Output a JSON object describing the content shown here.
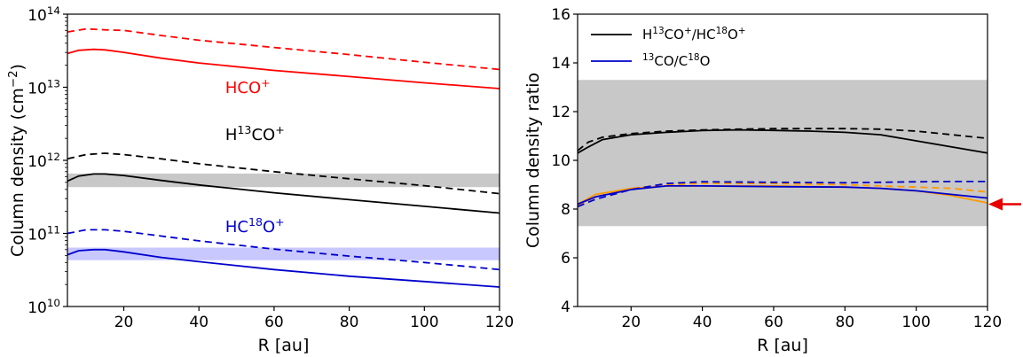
{
  "chart_data": [
    {
      "type": "line",
      "xlabel": "R [au]",
      "ylabel": "Column density (cm",
      "ylabel_sup": "−2",
      "ylabel_tail": ")",
      "yscale": "log",
      "xlim": [
        5,
        120
      ],
      "ylim_exp": [
        10,
        14
      ],
      "xticks": [
        20,
        40,
        60,
        80,
        100,
        120
      ],
      "yticks": [
        {
          "base": "10",
          "exp": "10"
        },
        {
          "base": "10",
          "exp": "11"
        },
        {
          "base": "10",
          "exp": "12"
        },
        {
          "base": "10",
          "exp": "13"
        },
        {
          "base": "10",
          "exp": "14"
        }
      ],
      "bands": [
        {
          "color": "#c8c8c8",
          "ymin": 430000000000.0,
          "ymax": 660000000000.0
        },
        {
          "color": "#c8c8ff",
          "ymin": 43000000000.0,
          "ymax": 64000000000.0
        }
      ],
      "annotations": [
        {
          "name": "hco-label",
          "base": "HCO",
          "sup_iso": "",
          "tail": "",
          "sup_charge": "+",
          "color": "#ff0000",
          "x": 47,
          "y": 8300000000000.0
        },
        {
          "name": "h13co-label",
          "base": "H",
          "sup_iso": "13",
          "tail": "CO",
          "sup_charge": "+",
          "color": "#000000",
          "x": 47,
          "y": 1900000000000.0
        },
        {
          "name": "hc18o-label",
          "base": "HC",
          "sup_iso": "18",
          "tail": "O",
          "sup_charge": "+",
          "color": "#0000cc",
          "x": 47,
          "y": 105000000000.0
        }
      ],
      "series": [
        {
          "color": "#ff0000",
          "dash": "solid",
          "x": [
            5,
            8,
            12,
            15,
            20,
            30,
            40,
            60,
            80,
            100,
            120
          ],
          "values": [
            29000000000000.0,
            32000000000000.0,
            33000000000000.0,
            32500000000000.0,
            30000000000000.0,
            25000000000000.0,
            21500000000000.0,
            17000000000000.0,
            14000000000000.0,
            11500000000000.0,
            9600000000000.0
          ]
        },
        {
          "color": "#ff0000",
          "dash": "dashed",
          "x": [
            5,
            10,
            15,
            20,
            30,
            40,
            60,
            80,
            100,
            120
          ],
          "values": [
            57000000000000.0,
            63000000000000.0,
            61000000000000.0,
            60000000000000.0,
            51000000000000.0,
            44000000000000.0,
            35000000000000.0,
            28000000000000.0,
            22000000000000.0,
            17500000000000.0
          ]
        },
        {
          "color": "#000000",
          "dash": "solid",
          "x": [
            5,
            8,
            12,
            15,
            20,
            30,
            40,
            60,
            80,
            100,
            120
          ],
          "values": [
            520000000000.0,
            610000000000.0,
            650000000000.0,
            650000000000.0,
            620000000000.0,
            530000000000.0,
            460000000000.0,
            360000000000.0,
            290000000000.0,
            235000000000.0,
            190000000000.0
          ]
        },
        {
          "color": "#000000",
          "dash": "dashed",
          "x": [
            5,
            10,
            15,
            20,
            30,
            40,
            60,
            80,
            100,
            120
          ],
          "values": [
            1050000000000.0,
            1200000000000.0,
            1250000000000.0,
            1200000000000.0,
            1050000000000.0,
            900000000000.0,
            700000000000.0,
            560000000000.0,
            450000000000.0,
            350000000000.0
          ]
        },
        {
          "color": "#0000cc",
          "dash": "solid",
          "x": [
            5,
            8,
            12,
            15,
            20,
            30,
            40,
            60,
            80,
            100,
            120
          ],
          "values": [
            51000000000.0,
            58000000000.0,
            60000000000.0,
            60000000000.0,
            56000000000.0,
            47000000000.0,
            41000000000.0,
            32000000000.0,
            26000000000.0,
            22000000000.0,
            18500000000.0
          ]
        },
        {
          "color": "#0000cc",
          "dash": "dashed",
          "x": [
            5,
            10,
            15,
            20,
            30,
            40,
            60,
            80,
            100,
            120
          ],
          "values": [
            100000000000.0,
            112000000000.0,
            112000000000.0,
            107000000000.0,
            92000000000.0,
            79000000000.0,
            61000000000.0,
            49000000000.0,
            40000000000.0,
            32000000000.0
          ]
        }
      ]
    },
    {
      "type": "line",
      "xlabel": "R [au]",
      "ylabel": "Column density ratio",
      "xlim": [
        5,
        120
      ],
      "ylim": [
        4,
        16
      ],
      "xticks": [
        20,
        40,
        60,
        80,
        100,
        120
      ],
      "yticks": [
        4,
        6,
        8,
        10,
        12,
        14,
        16
      ],
      "bands": [
        {
          "color": "#c8c8c8",
          "ymin": 7.3,
          "ymax": 13.3
        }
      ],
      "arrow": {
        "color": "#e60000",
        "y": 8.2
      },
      "legend": {
        "position": "top-left",
        "entries": [
          {
            "color": "#000000",
            "a": "H",
            "a_sup": "13",
            "b": "CO",
            "b_sup": "+",
            "c": "/HC",
            "c_sup": "18",
            "d": "O",
            "d_sup": "+"
          },
          {
            "color": "#0000cc",
            "a": "",
            "a_sup": "13",
            "b": "CO/C",
            "b_sup": "18",
            "c": "O",
            "c_sup": "",
            "d": "",
            "d_sup": ""
          }
        ]
      },
      "series": [
        {
          "color": "#000000",
          "dash": "solid",
          "x": [
            5,
            8,
            12,
            20,
            30,
            40,
            50,
            60,
            70,
            80,
            90,
            100,
            110,
            120
          ],
          "values": [
            10.3,
            10.55,
            10.85,
            11.05,
            11.15,
            11.22,
            11.25,
            11.23,
            11.2,
            11.15,
            11.05,
            10.8,
            10.55,
            10.3
          ]
        },
        {
          "color": "#000000",
          "dash": "dashed",
          "x": [
            5,
            8,
            12,
            20,
            30,
            40,
            50,
            60,
            70,
            80,
            90,
            100,
            110,
            120
          ],
          "values": [
            10.4,
            10.75,
            10.95,
            11.1,
            11.2,
            11.25,
            11.28,
            11.3,
            11.3,
            11.3,
            11.28,
            11.2,
            11.05,
            10.9
          ]
        },
        {
          "color": "#ff9900",
          "dash": "solid",
          "x": [
            5,
            10,
            20,
            30,
            40,
            60,
            80,
            90,
            100,
            110,
            120
          ],
          "values": [
            8.2,
            8.6,
            8.85,
            8.95,
            8.95,
            8.95,
            8.9,
            8.85,
            8.75,
            8.55,
            8.25
          ]
        },
        {
          "color": "#ff9900",
          "dash": "dashed",
          "x": [
            5,
            10,
            20,
            30,
            40,
            60,
            80,
            90,
            100,
            110,
            120
          ],
          "values": [
            8.15,
            8.5,
            8.85,
            9.0,
            9.05,
            9.05,
            9.0,
            8.95,
            8.9,
            8.85,
            8.7
          ]
        },
        {
          "color": "#0000cc",
          "dash": "solid",
          "x": [
            5,
            10,
            20,
            30,
            40,
            60,
            80,
            90,
            100,
            110,
            120
          ],
          "values": [
            8.2,
            8.5,
            8.8,
            8.95,
            8.95,
            8.92,
            8.9,
            8.85,
            8.75,
            8.6,
            8.45
          ]
        },
        {
          "color": "#0000cc",
          "dash": "dashed",
          "x": [
            5,
            10,
            20,
            30,
            40,
            60,
            80,
            90,
            100,
            110,
            120
          ],
          "values": [
            8.1,
            8.4,
            8.8,
            9.05,
            9.12,
            9.1,
            9.08,
            9.1,
            9.12,
            9.13,
            9.13
          ]
        }
      ]
    }
  ]
}
